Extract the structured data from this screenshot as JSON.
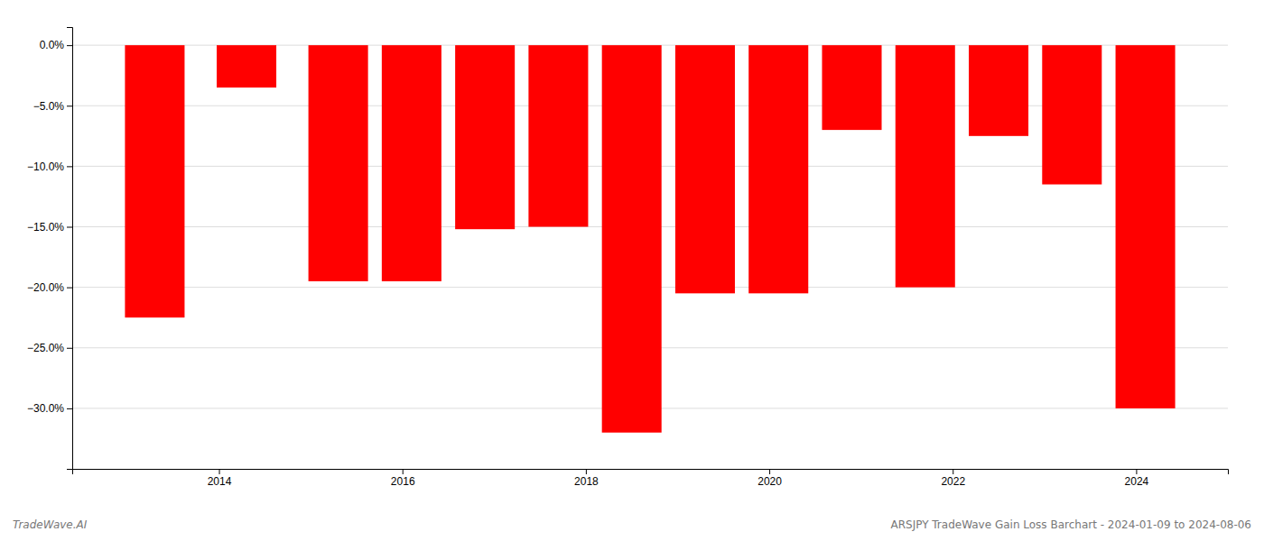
{
  "chart_data": {
    "type": "bar",
    "x": [
      2013.3,
      2014.3,
      2015.3,
      2016.1,
      2016.9,
      2017.7,
      2018.5,
      2019.3,
      2020.1,
      2020.9,
      2021.7,
      2022.5,
      2023.3,
      2024.1
    ],
    "values": [
      -22.5,
      -3.5,
      -19.5,
      -19.5,
      -15.2,
      -15.0,
      -32.0,
      -20.5,
      -20.5,
      -7.0,
      -20.0,
      -7.5,
      -11.5,
      -30.0
    ],
    "color": "#ff0000",
    "xlim": [
      2012.4,
      2025.0
    ],
    "xticks": [
      2014,
      2016,
      2018,
      2020,
      2022,
      2024
    ],
    "ylim": [
      -35,
      1.5
    ],
    "yticks": [
      {
        "value": 0.0,
        "label": "0.0%"
      },
      {
        "value": -5.0,
        "label": "−5.0%"
      },
      {
        "value": -10.0,
        "label": "−10.0%"
      },
      {
        "value": -15.0,
        "label": "−15.0%"
      },
      {
        "value": -20.0,
        "label": "−20.0%"
      },
      {
        "value": -25.0,
        "label": "−25.0%"
      },
      {
        "value": -30.0,
        "label": "−30.0%"
      }
    ],
    "grid": true,
    "annotations": [
      "TradeWave.AI",
      "ARSJPY TradeWave Gain Loss Barchart - 2024-01-09 to 2024-08-06"
    ]
  }
}
